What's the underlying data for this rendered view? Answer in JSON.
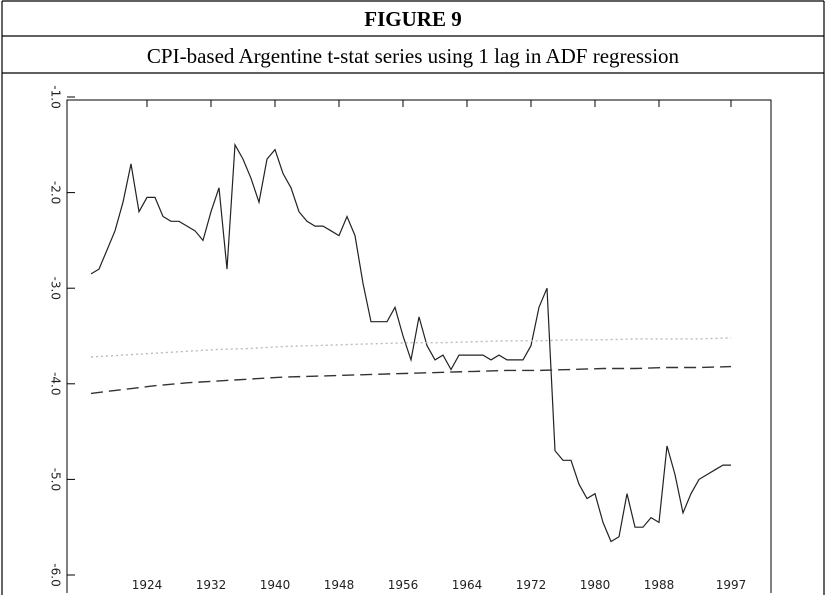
{
  "chart_data": {
    "type": "line",
    "title": "FIGURE 9",
    "subtitle": "CPI-based Argentine t-stat series using 1 lag in ADF regression",
    "xlim": [
      1914,
      2002
    ],
    "ylim": [
      -6,
      -1
    ],
    "xticks": [
      1924,
      1932,
      1940,
      1948,
      1956,
      1964,
      1972,
      1980,
      1988,
      1997
    ],
    "yticks": [
      {
        "value": -1,
        "label": "-1.0"
      },
      {
        "value": -2,
        "label": "-2.0"
      },
      {
        "value": -3,
        "label": "-3.0"
      },
      {
        "value": -4,
        "label": "-4.0"
      },
      {
        "value": -5,
        "label": "-5.0"
      },
      {
        "value": -6,
        "label": "-6.0"
      }
    ],
    "x": [
      1917,
      1918,
      1919,
      1920,
      1921,
      1922,
      1923,
      1924,
      1925,
      1926,
      1927,
      1928,
      1929,
      1930,
      1931,
      1932,
      1933,
      1934,
      1935,
      1936,
      1937,
      1938,
      1939,
      1940,
      1941,
      1942,
      1943,
      1944,
      1945,
      1946,
      1947,
      1948,
      1949,
      1950,
      1951,
      1952,
      1953,
      1954,
      1955,
      1956,
      1957,
      1958,
      1959,
      1960,
      1961,
      1962,
      1963,
      1964,
      1965,
      1966,
      1967,
      1968,
      1969,
      1970,
      1971,
      1972,
      1973,
      1974,
      1975,
      1976,
      1977,
      1978,
      1979,
      1980,
      1981,
      1982,
      1983,
      1984,
      1985,
      1986,
      1987,
      1988,
      1989,
      1990,
      1991,
      1992,
      1993,
      1994,
      1995,
      1996,
      1997
    ],
    "series": [
      {
        "color": "#222222",
        "dash": "none",
        "values": [
          -2.85,
          -2.8,
          -2.6,
          -2.4,
          -2.1,
          -1.7,
          -2.2,
          -2.05,
          -2.05,
          -2.25,
          -2.3,
          -2.3,
          -2.35,
          -2.4,
          -2.5,
          -2.2,
          -1.95,
          -2.8,
          -1.5,
          -1.65,
          -1.85,
          -2.1,
          -1.65,
          -1.55,
          -1.8,
          -1.95,
          -2.2,
          -2.3,
          -2.35,
          -2.35,
          -2.4,
          -2.45,
          -2.25,
          -2.45,
          -2.95,
          -3.35,
          -3.35,
          -3.35,
          -3.2,
          -3.5,
          -3.75,
          -3.3,
          -3.6,
          -3.75,
          -3.7,
          -3.85,
          -3.7,
          -3.7,
          -3.7,
          -3.7,
          -3.75,
          -3.7,
          -3.75,
          -3.75,
          -3.75,
          -3.6,
          -3.2,
          -3.0,
          -4.7,
          -4.8,
          -4.8,
          -5.05,
          -5.2,
          -5.15,
          -5.45,
          -5.65,
          -5.6,
          -5.15,
          -5.5,
          -5.5,
          -5.4,
          -5.45,
          -4.65,
          -4.95,
          -5.35,
          -5.15,
          -5.0,
          -4.95,
          -4.9,
          -4.85,
          -4.85
        ]
      },
      {
        "color": "#bbbbbb",
        "dash": "2 3",
        "x": [
          1917,
          1921,
          1925,
          1929,
          1933,
          1937,
          1941,
          1945,
          1949,
          1953,
          1957,
          1961,
          1965,
          1969,
          1973,
          1977,
          1981,
          1985,
          1989,
          1993,
          1997
        ],
        "values": [
          -3.72,
          -3.7,
          -3.68,
          -3.66,
          -3.64,
          -3.63,
          -3.61,
          -3.6,
          -3.59,
          -3.58,
          -3.57,
          -3.57,
          -3.56,
          -3.55,
          -3.55,
          -3.54,
          -3.54,
          -3.53,
          -3.53,
          -3.53,
          -3.52
        ]
      },
      {
        "color": "#333333",
        "dash": "12 6",
        "x": [
          1917,
          1921,
          1925,
          1929,
          1933,
          1937,
          1941,
          1945,
          1949,
          1953,
          1957,
          1961,
          1965,
          1969,
          1973,
          1977,
          1981,
          1985,
          1989,
          1993,
          1997
        ],
        "values": [
          -4.1,
          -4.06,
          -4.02,
          -3.99,
          -3.97,
          -3.95,
          -3.93,
          -3.92,
          -3.91,
          -3.9,
          -3.89,
          -3.88,
          -3.87,
          -3.86,
          -3.86,
          -3.85,
          -3.84,
          -3.84,
          -3.83,
          -3.83,
          -3.82
        ]
      }
    ]
  }
}
